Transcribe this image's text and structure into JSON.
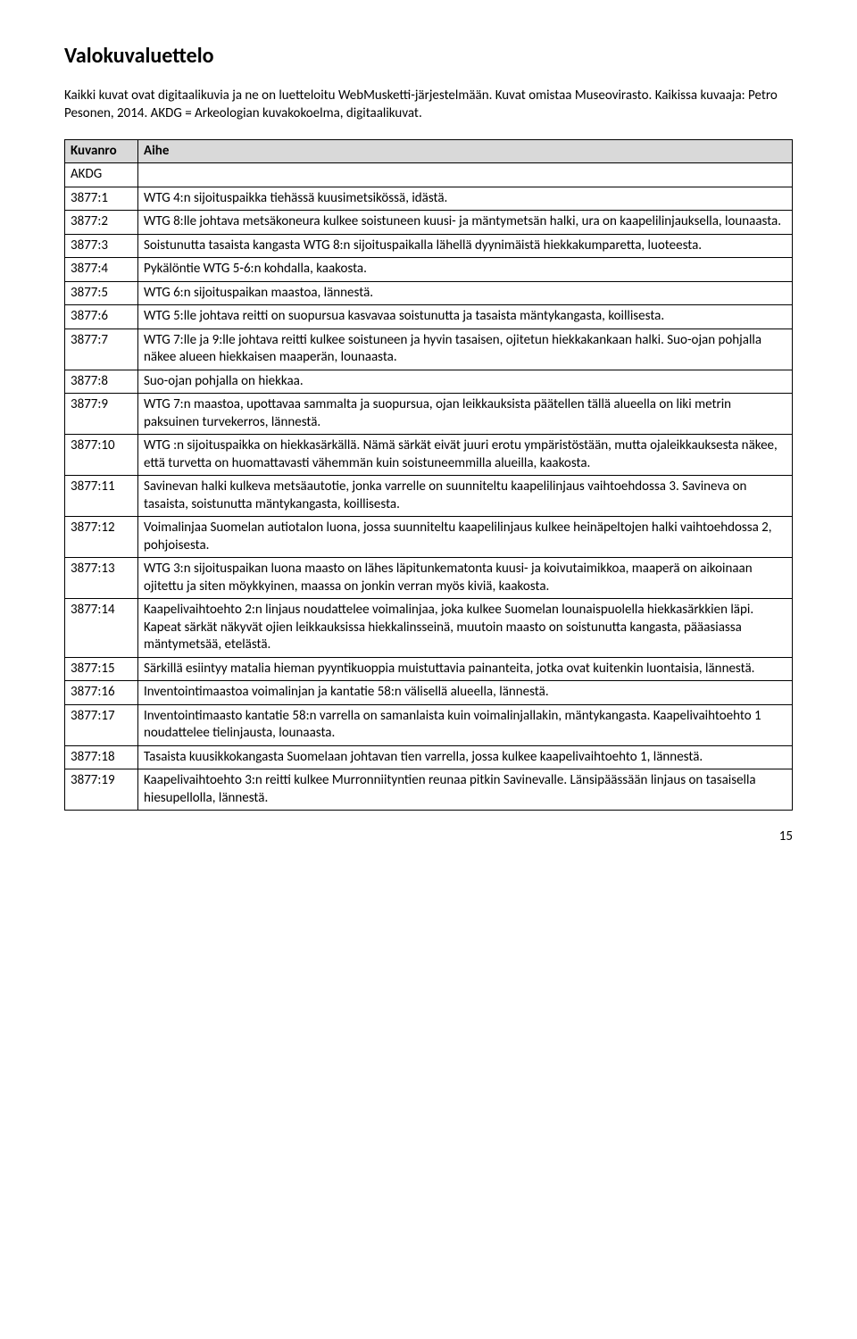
{
  "title": "Valokuvaluettelo",
  "intro": "Kaikki kuvat ovat digitaalikuvia ja ne on luetteloitu WebMusketti-järjestelmään. Kuvat omistaa Museovirasto. Kaikissa kuvaaja: Petro Pesonen, 2014. AKDG = Arkeologian kuvakokoelma, digitaalikuvat.",
  "columns": {
    "code": "Kuvanro",
    "desc": "Aihe"
  },
  "akdgLabel": "AKDG",
  "rows": [
    {
      "code": "3877:1",
      "desc": "WTG 4:n sijoituspaikka tiehässä kuusimetsikössä, idästä."
    },
    {
      "code": "3877:2",
      "desc": "WTG 8:lle johtava metsäkoneura kulkee soistuneen kuusi- ja mäntymetsän halki, ura on kaapelilinjauksella, lounaasta."
    },
    {
      "code": "3877:3",
      "desc": "Soistunutta tasaista kangasta WTG 8:n sijoituspaikalla lähellä dyynimäistä hiekkakumparetta, luoteesta."
    },
    {
      "code": "3877:4",
      "desc": "Pykälöntie WTG 5-6:n kohdalla, kaakosta."
    },
    {
      "code": "3877:5",
      "desc": "WTG 6:n sijoituspaikan maastoa, lännestä."
    },
    {
      "code": "3877:6",
      "desc": "WTG 5:lle johtava reitti on suopursua kasvavaa soistunutta ja tasaista mäntykangasta, koillisesta."
    },
    {
      "code": "3877:7",
      "desc": "WTG 7:lle ja 9:lle johtava reitti kulkee soistuneen ja hyvin tasaisen, ojitetun hiekkakankaan halki. Suo-ojan pohjalla näkee alueen hiekkaisen maaperän, lounaasta."
    },
    {
      "code": "3877:8",
      "desc": "Suo-ojan pohjalla on hiekkaa."
    },
    {
      "code": "3877:9",
      "desc": "WTG 7:n maastoa, upottavaa sammalta ja suopursua, ojan leikkauksista päätellen tällä alueella on liki metrin paksuinen turvekerros, lännestä."
    },
    {
      "code": "3877:10",
      "desc": "WTG :n sijoituspaikka on hiekkasärkällä. Nämä särkät eivät juuri erotu ympäristöstään, mutta ojaleikkauksesta näkee, että turvetta on huomattavasti vähemmän kuin soistuneemmilla alueilla, kaakosta."
    },
    {
      "code": "3877:11",
      "desc": "Savinevan halki kulkeva metsäautotie, jonka varrelle on suunniteltu kaapelilinjaus vaihtoehdossa 3. Savineva on tasaista, soistunutta mäntykangasta, koillisesta."
    },
    {
      "code": "3877:12",
      "desc": "Voimalinjaa Suomelan autiotalon luona, jossa suunniteltu kaapelilinjaus kulkee heinäpeltojen halki vaihtoehdossa 2, pohjoisesta."
    },
    {
      "code": "3877:13",
      "desc": "WTG 3:n sijoituspaikan luona maasto on lähes läpitunkematonta kuusi- ja koivutaimikkoa, maaperä on aikoinaan ojitettu ja siten möykkyinen, maassa on jonkin verran myös kiviä, kaakosta."
    },
    {
      "code": "3877:14",
      "desc": "Kaapelivaihtoehto 2:n linjaus noudattelee voimalinjaa, joka kulkee Suomelan lounaispuolella hiekkasärkkien läpi. Kapeat särkät näkyvät ojien leikkauksissa hiekkalinsseinä, muutoin maasto on soistunutta kangasta, pääasiassa mäntymetsää, etelästä."
    },
    {
      "code": "3877:15",
      "desc": "Särkillä esiintyy matalia hieman pyyntikuoppia muistuttavia painanteita, jotka ovat kuitenkin luontaisia, lännestä."
    },
    {
      "code": "3877:16",
      "desc": "Inventointimaastoa voimalinjan ja kantatie 58:n välisellä alueella, lännestä."
    },
    {
      "code": "3877:17",
      "desc": "Inventointimaasto kantatie 58:n varrella on samanlaista kuin voimalinjallakin, mäntykangasta. Kaapelivaihtoehto 1 noudattelee tielinjausta, lounaasta."
    },
    {
      "code": "3877:18",
      "desc": "Tasaista kuusikkokangasta Suomelaan johtavan tien varrella, jossa kulkee kaapelivaihtoehto 1, lännestä."
    },
    {
      "code": "3877:19",
      "desc": "Kaapelivaihtoehto 3:n reitti kulkee Murronniityntien reunaa pitkin Savinevalle. Länsipäässään linjaus on tasaisella hiesupellolla, lännestä."
    }
  ],
  "pageNumber": "15",
  "style": {
    "background": "#ffffff",
    "text": "#000000",
    "border": "#000000",
    "headerBg": "#d9d9d9",
    "titleSize": 24,
    "bodySize": 15
  }
}
